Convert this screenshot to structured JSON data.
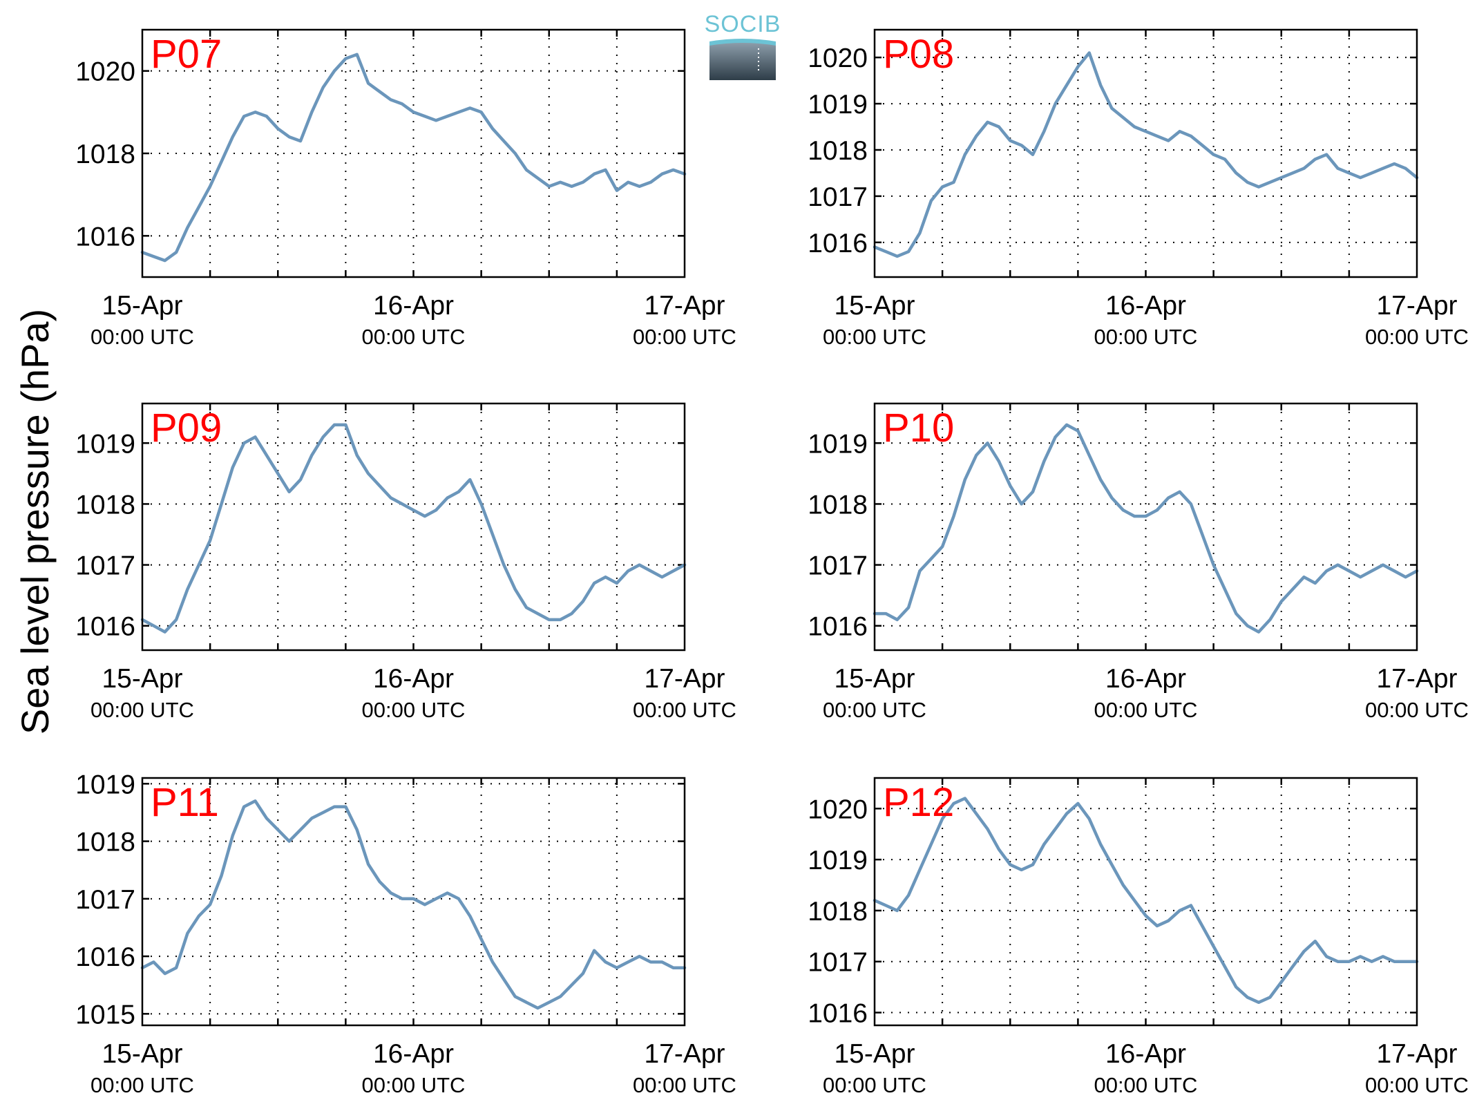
{
  "chart_data": {
    "type": "line",
    "ylabel": "Sea level pressure (hPa)",
    "logo_text": "SOCIB",
    "line_color": "#6b96bb",
    "title_color": "#ff0000",
    "grid": true,
    "x_range_hours": [
      0,
      48
    ],
    "x_ticks": [
      {
        "date": "15-Apr",
        "time": "00:00 UTC"
      },
      {
        "date": "16-Apr",
        "time": "00:00 UTC"
      },
      {
        "date": "17-Apr",
        "time": "00:00 UTC"
      }
    ],
    "panels": [
      {
        "title": "P07",
        "ylim": [
          1015,
          1021
        ],
        "yticks": [
          1016,
          1018,
          1020
        ],
        "series": [
          {
            "x": [
              0,
              1,
              2,
              3,
              4,
              5,
              6,
              7,
              8,
              9,
              10,
              11,
              12,
              13,
              14,
              15,
              16,
              17,
              18,
              19,
              20,
              21,
              22,
              23,
              24,
              25,
              26,
              27,
              28,
              29,
              30,
              31,
              32,
              33,
              34,
              35,
              36,
              37,
              38,
              39,
              40,
              41,
              42,
              43,
              44,
              45,
              46,
              47,
              48
            ],
            "y": [
              1015.6,
              1015.5,
              1015.4,
              1015.6,
              1016.2,
              1016.7,
              1017.2,
              1017.8,
              1018.4,
              1018.9,
              1019.0,
              1018.9,
              1018.6,
              1018.4,
              1018.3,
              1019.0,
              1019.6,
              1020.0,
              1020.3,
              1020.4,
              1019.7,
              1019.5,
              1019.3,
              1019.2,
              1019.0,
              1018.9,
              1018.8,
              1018.9,
              1019.0,
              1019.1,
              1019.0,
              1018.6,
              1018.3,
              1018.0,
              1017.6,
              1017.4,
              1017.2,
              1017.3,
              1017.2,
              1017.3,
              1017.5,
              1017.6,
              1017.1,
              1017.3,
              1017.2,
              1017.3,
              1017.5,
              1017.6,
              1017.5
            ]
          }
        ]
      },
      {
        "title": "P08",
        "ylim": [
          1015.25,
          1020.6
        ],
        "yticks": [
          1016,
          1017,
          1018,
          1019,
          1020
        ],
        "series": [
          {
            "x": [
              0,
              1,
              2,
              3,
              4,
              5,
              6,
              7,
              8,
              9,
              10,
              11,
              12,
              13,
              14,
              15,
              16,
              17,
              18,
              19,
              20,
              21,
              22,
              23,
              24,
              25,
              26,
              27,
              28,
              29,
              30,
              31,
              32,
              33,
              34,
              35,
              36,
              37,
              38,
              39,
              40,
              41,
              42,
              43,
              44,
              45,
              46,
              47,
              48
            ],
            "y": [
              1015.9,
              1015.8,
              1015.7,
              1015.8,
              1016.2,
              1016.9,
              1017.2,
              1017.3,
              1017.9,
              1018.3,
              1018.6,
              1018.5,
              1018.2,
              1018.1,
              1017.9,
              1018.4,
              1019.0,
              1019.4,
              1019.8,
              1020.1,
              1019.4,
              1018.9,
              1018.7,
              1018.5,
              1018.4,
              1018.3,
              1018.2,
              1018.4,
              1018.3,
              1018.1,
              1017.9,
              1017.8,
              1017.5,
              1017.3,
              1017.2,
              1017.3,
              1017.4,
              1017.5,
              1017.6,
              1017.8,
              1017.9,
              1017.6,
              1017.5,
              1017.4,
              1017.5,
              1017.6,
              1017.7,
              1017.6,
              1017.4
            ]
          }
        ]
      },
      {
        "title": "P09",
        "ylim": [
          1015.6,
          1019.65
        ],
        "yticks": [
          1016,
          1017,
          1018,
          1019
        ],
        "series": [
          {
            "x": [
              0,
              1,
              2,
              3,
              4,
              5,
              6,
              7,
              8,
              9,
              10,
              11,
              12,
              13,
              14,
              15,
              16,
              17,
              18,
              19,
              20,
              21,
              22,
              23,
              24,
              25,
              26,
              27,
              28,
              29,
              30,
              31,
              32,
              33,
              34,
              35,
              36,
              37,
              38,
              39,
              40,
              41,
              42,
              43,
              44,
              45,
              46,
              47,
              48
            ],
            "y": [
              1016.1,
              1016.0,
              1015.9,
              1016.1,
              1016.6,
              1017.0,
              1017.4,
              1018.0,
              1018.6,
              1019.0,
              1019.1,
              1018.8,
              1018.5,
              1018.2,
              1018.4,
              1018.8,
              1019.1,
              1019.3,
              1019.3,
              1018.8,
              1018.5,
              1018.3,
              1018.1,
              1018.0,
              1017.9,
              1017.8,
              1017.9,
              1018.1,
              1018.2,
              1018.4,
              1018.0,
              1017.5,
              1017.0,
              1016.6,
              1016.3,
              1016.2,
              1016.1,
              1016.1,
              1016.2,
              1016.4,
              1016.7,
              1016.8,
              1016.7,
              1016.9,
              1017.0,
              1016.9,
              1016.8,
              1016.9,
              1017.0
            ]
          }
        ]
      },
      {
        "title": "P10",
        "ylim": [
          1015.6,
          1019.65
        ],
        "yticks": [
          1016,
          1017,
          1018,
          1019
        ],
        "series": [
          {
            "x": [
              0,
              1,
              2,
              3,
              4,
              5,
              6,
              7,
              8,
              9,
              10,
              11,
              12,
              13,
              14,
              15,
              16,
              17,
              18,
              19,
              20,
              21,
              22,
              23,
              24,
              25,
              26,
              27,
              28,
              29,
              30,
              31,
              32,
              33,
              34,
              35,
              36,
              37,
              38,
              39,
              40,
              41,
              42,
              43,
              44,
              45,
              46,
              47,
              48
            ],
            "y": [
              1016.2,
              1016.2,
              1016.1,
              1016.3,
              1016.9,
              1017.1,
              1017.3,
              1017.8,
              1018.4,
              1018.8,
              1019.0,
              1018.7,
              1018.3,
              1018.0,
              1018.2,
              1018.7,
              1019.1,
              1019.3,
              1019.2,
              1018.8,
              1018.4,
              1018.1,
              1017.9,
              1017.8,
              1017.8,
              1017.9,
              1018.1,
              1018.2,
              1018.0,
              1017.5,
              1017.0,
              1016.6,
              1016.2,
              1016.0,
              1015.9,
              1016.1,
              1016.4,
              1016.6,
              1016.8,
              1016.7,
              1016.9,
              1017.0,
              1016.9,
              1016.8,
              1016.9,
              1017.0,
              1016.9,
              1016.8,
              1016.9
            ]
          }
        ]
      },
      {
        "title": "P11",
        "ylim": [
          1014.8,
          1019.1
        ],
        "yticks": [
          1015,
          1016,
          1017,
          1018,
          1019
        ],
        "series": [
          {
            "x": [
              0,
              1,
              2,
              3,
              4,
              5,
              6,
              7,
              8,
              9,
              10,
              11,
              12,
              13,
              14,
              15,
              16,
              17,
              18,
              19,
              20,
              21,
              22,
              23,
              24,
              25,
              26,
              27,
              28,
              29,
              30,
              31,
              32,
              33,
              34,
              35,
              36,
              37,
              38,
              39,
              40,
              41,
              42,
              43,
              44,
              45,
              46,
              47,
              48
            ],
            "y": [
              1015.8,
              1015.9,
              1015.7,
              1015.8,
              1016.4,
              1016.7,
              1016.9,
              1017.4,
              1018.1,
              1018.6,
              1018.7,
              1018.4,
              1018.2,
              1018.0,
              1018.2,
              1018.4,
              1018.5,
              1018.6,
              1018.6,
              1018.2,
              1017.6,
              1017.3,
              1017.1,
              1017.0,
              1017.0,
              1016.9,
              1017.0,
              1017.1,
              1017.0,
              1016.7,
              1016.3,
              1015.9,
              1015.6,
              1015.3,
              1015.2,
              1015.1,
              1015.2,
              1015.3,
              1015.5,
              1015.7,
              1016.1,
              1015.9,
              1015.8,
              1015.9,
              1016.0,
              1015.9,
              1015.9,
              1015.8,
              1015.8
            ]
          }
        ]
      },
      {
        "title": "P12",
        "ylim": [
          1015.75,
          1020.6
        ],
        "yticks": [
          1016,
          1017,
          1018,
          1019,
          1020
        ],
        "series": [
          {
            "x": [
              0,
              1,
              2,
              3,
              4,
              5,
              6,
              7,
              8,
              9,
              10,
              11,
              12,
              13,
              14,
              15,
              16,
              17,
              18,
              19,
              20,
              21,
              22,
              23,
              24,
              25,
              26,
              27,
              28,
              29,
              30,
              31,
              32,
              33,
              34,
              35,
              36,
              37,
              38,
              39,
              40,
              41,
              42,
              43,
              44,
              45,
              46,
              47,
              48
            ],
            "y": [
              1018.2,
              1018.1,
              1018.0,
              1018.3,
              1018.8,
              1019.3,
              1019.8,
              1020.1,
              1020.2,
              1019.9,
              1019.6,
              1019.2,
              1018.9,
              1018.8,
              1018.9,
              1019.3,
              1019.6,
              1019.9,
              1020.1,
              1019.8,
              1019.3,
              1018.9,
              1018.5,
              1018.2,
              1017.9,
              1017.7,
              1017.8,
              1018.0,
              1018.1,
              1017.7,
              1017.3,
              1016.9,
              1016.5,
              1016.3,
              1016.2,
              1016.3,
              1016.6,
              1016.9,
              1017.2,
              1017.4,
              1017.1,
              1017.0,
              1017.0,
              1017.1,
              1017.0,
              1017.1,
              1017.0,
              1017.0,
              1017.0
            ]
          }
        ]
      }
    ]
  }
}
